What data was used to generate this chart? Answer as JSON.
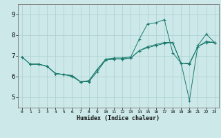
{
  "xlabel": "Humidex (Indice chaleur)",
  "background_color": "#cce8e8",
  "grid_color": "#aacfcf",
  "line_color": "#1a7a6e",
  "xlim": [
    -0.5,
    23.5
  ],
  "ylim": [
    4.5,
    9.5
  ],
  "yticks": [
    5,
    6,
    7,
    8,
    9
  ],
  "xticks": [
    0,
    1,
    2,
    3,
    4,
    5,
    6,
    7,
    8,
    9,
    10,
    11,
    12,
    13,
    14,
    15,
    16,
    17,
    18,
    19,
    20,
    21,
    22,
    23
  ],
  "line1_x": [
    0,
    1,
    2,
    3,
    4,
    5,
    6,
    7,
    8,
    9,
    10,
    11,
    12,
    13,
    14,
    15,
    16,
    17,
    18,
    19,
    20,
    21,
    22,
    23
  ],
  "line1_y": [
    6.95,
    6.6,
    6.6,
    6.5,
    6.15,
    6.1,
    6.05,
    5.75,
    5.8,
    6.35,
    6.85,
    6.9,
    6.9,
    6.95,
    7.8,
    8.55,
    8.6,
    8.75,
    7.15,
    6.65,
    4.85,
    7.5,
    8.05,
    7.65
  ],
  "line2_x": [
    0,
    1,
    2,
    3,
    4,
    5,
    6,
    7,
    8,
    9,
    10,
    11,
    12,
    13,
    14,
    15,
    16,
    17,
    18,
    19,
    20,
    21,
    22,
    23
  ],
  "line2_y": [
    6.95,
    6.6,
    6.6,
    6.5,
    6.15,
    6.1,
    6.0,
    5.75,
    5.75,
    6.25,
    6.8,
    6.85,
    6.85,
    6.9,
    7.25,
    7.4,
    7.5,
    7.6,
    7.65,
    6.65,
    6.65,
    7.45,
    7.7,
    7.65
  ],
  "line3_x": [
    1,
    2,
    3,
    4,
    5,
    6,
    7,
    8,
    9,
    10,
    11,
    12,
    13,
    14,
    15,
    16,
    17,
    18,
    19,
    20,
    21,
    22,
    23
  ],
  "line3_y": [
    6.6,
    6.6,
    6.5,
    6.15,
    6.1,
    6.05,
    5.75,
    5.8,
    6.35,
    6.8,
    6.85,
    6.85,
    6.9,
    7.25,
    7.45,
    7.55,
    7.65,
    7.65,
    6.65,
    6.6,
    7.45,
    7.65,
    7.65
  ]
}
